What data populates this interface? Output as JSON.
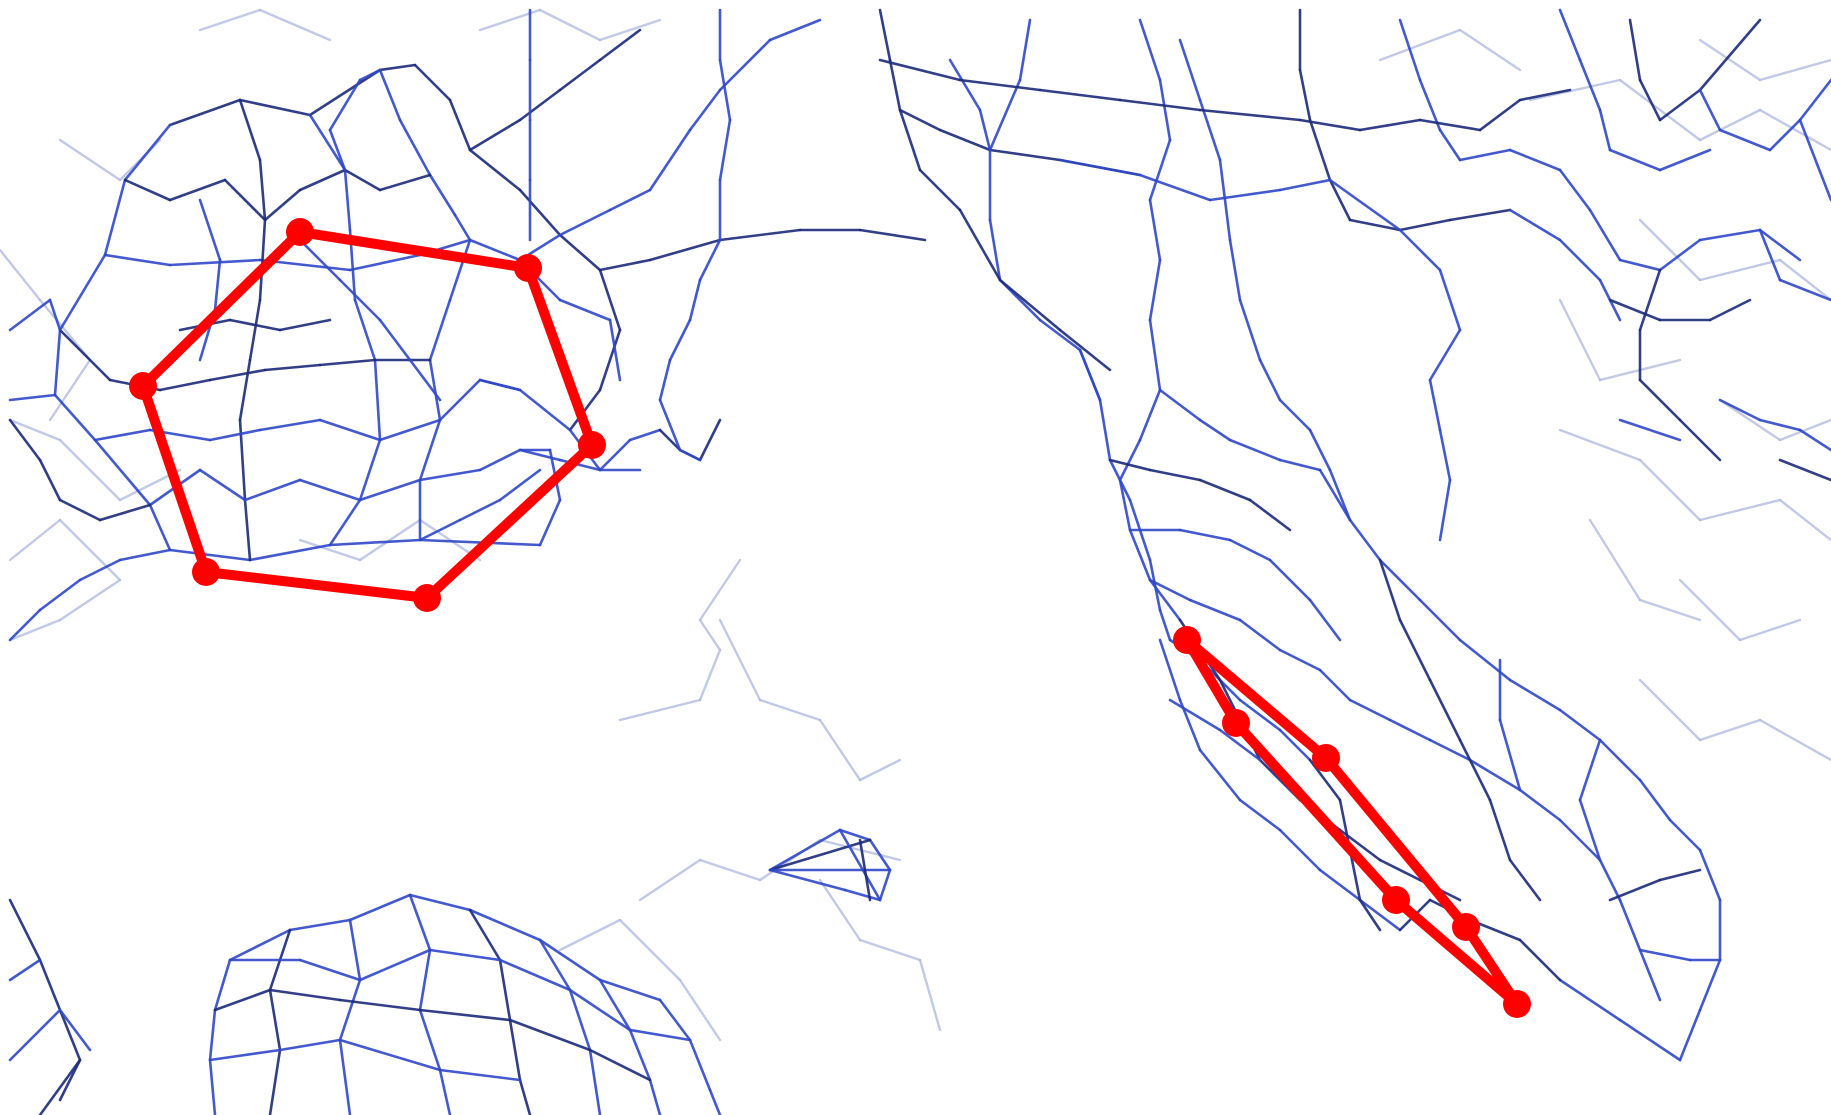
{
  "scene": {
    "description_visible_text": "",
    "colors": {
      "background": "#ffffff",
      "mesh_dark": "#1c2a7a",
      "mesh_mid": "#2f47c8",
      "mesh_light": "#aeb7dc",
      "overlay": "#ff0000"
    },
    "overlay_shapes": [
      {
        "name": "hexagon-ring",
        "closed": true,
        "vertex_count": 6
      },
      {
        "name": "elongated-ring",
        "closed": true,
        "vertex_count": 6
      }
    ]
  }
}
